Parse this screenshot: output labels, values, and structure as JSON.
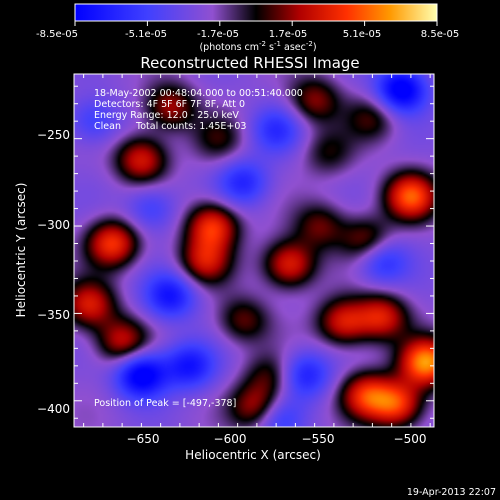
{
  "colorbar": {
    "tick_labels": [
      "-8.5e-05",
      "-5.1e-05",
      "-1.7e-05",
      "1.7e-05",
      "5.1e-05",
      "8.5e-05"
    ],
    "units_line": "(photons cm",
    "units_exp1": "-2",
    "units_mid": " s",
    "units_exp2": "-1",
    "units_mid2": " asec",
    "units_exp3": "-2",
    "units_end": ")",
    "range": [
      -8.5e-05,
      8.5e-05
    ]
  },
  "chart_data": {
    "type": "heatmap",
    "title": "Reconstructed RHESSI Image",
    "xlabel": "Heliocentric X (arcsec)",
    "ylabel": "Heliocentric Y (arcsec)",
    "xlim": [
      -680,
      -493
    ],
    "ylim": [
      -415,
      -213
    ],
    "x_ticks": [
      -650,
      -600,
      -550,
      -500
    ],
    "y_ticks": [
      -250,
      -300,
      -350,
      -400
    ],
    "x_tick_labels": [
      "−650",
      "−600",
      "−550",
      "−500"
    ],
    "y_tick_labels": [
      "−250",
      "−300",
      "−350",
      "−400"
    ],
    "annotations": [
      "18-May-2002 00:48:04.000 to 00:51:40.000",
      "Detectors: 4F 5F 6F 7F 8F, Att 0",
      "Energy Range: 12.0 - 25.0 keV",
      "Clean     Total counts: 1.45E+03"
    ],
    "peak_label": "Position of Peak = [-497,-378]",
    "peak_position": [
      -497,
      -378
    ],
    "sources": [
      {
        "x": -497,
        "y": -378,
        "amp": 8.5e-05
      },
      {
        "x": -505,
        "y": -283,
        "amp": 7.2e-05
      },
      {
        "x": -528,
        "y": -308,
        "amp": 4e-05
      },
      {
        "x": -520,
        "y": -352,
        "amp": 5.5e-05
      },
      {
        "x": -540,
        "y": -355,
        "amp": 5.5e-05
      },
      {
        "x": -528,
        "y": -397,
        "amp": 6e-05
      },
      {
        "x": -512,
        "y": -402,
        "amp": 6.5e-05
      },
      {
        "x": -568,
        "y": -322,
        "amp": 6e-05
      },
      {
        "x": -552,
        "y": -300,
        "amp": 3.5e-05
      },
      {
        "x": -555,
        "y": -228,
        "amp": 4e-05
      },
      {
        "x": -525,
        "y": -238,
        "amp": 3e-05
      },
      {
        "x": -548,
        "y": -258,
        "amp": 2.5e-05
      },
      {
        "x": -608,
        "y": -300,
        "amp": 6.5e-05
      },
      {
        "x": -612,
        "y": -320,
        "amp": 5e-05
      },
      {
        "x": -630,
        "y": -232,
        "amp": 4.5e-05
      },
      {
        "x": -645,
        "y": -262,
        "amp": 5.5e-05
      },
      {
        "x": -660,
        "y": -310,
        "amp": 6.5e-05
      },
      {
        "x": -672,
        "y": -345,
        "amp": 5.5e-05
      },
      {
        "x": -655,
        "y": -366,
        "amp": 5e-05
      },
      {
        "x": -592,
        "y": -354,
        "amp": 3.5e-05
      },
      {
        "x": -578,
        "y": -386,
        "amp": 3e-05
      },
      {
        "x": -585,
        "y": -404,
        "amp": 5e-05
      },
      {
        "x": -605,
        "y": -250,
        "amp": 2.5e-05
      },
      {
        "x": -592,
        "y": -275,
        "amp": -4e-05
      },
      {
        "x": -620,
        "y": -380,
        "amp": -5e-05
      },
      {
        "x": -645,
        "y": -385,
        "amp": -7e-05
      },
      {
        "x": -560,
        "y": -385,
        "amp": -4.5e-05
      },
      {
        "x": -510,
        "y": -222,
        "amp": -7e-05
      },
      {
        "x": -520,
        "y": -320,
        "amp": -4e-05
      },
      {
        "x": -575,
        "y": -245,
        "amp": -3.5e-05
      },
      {
        "x": -630,
        "y": -340,
        "amp": -5e-05
      },
      {
        "x": -670,
        "y": -240,
        "amp": -3e-05
      },
      {
        "x": -640,
        "y": -290,
        "amp": -3e-05
      },
      {
        "x": -575,
        "y": -410,
        "amp": -3.5e-05
      }
    ]
  },
  "footer": {
    "timestamp": "19-Apr-2013 22:07"
  }
}
